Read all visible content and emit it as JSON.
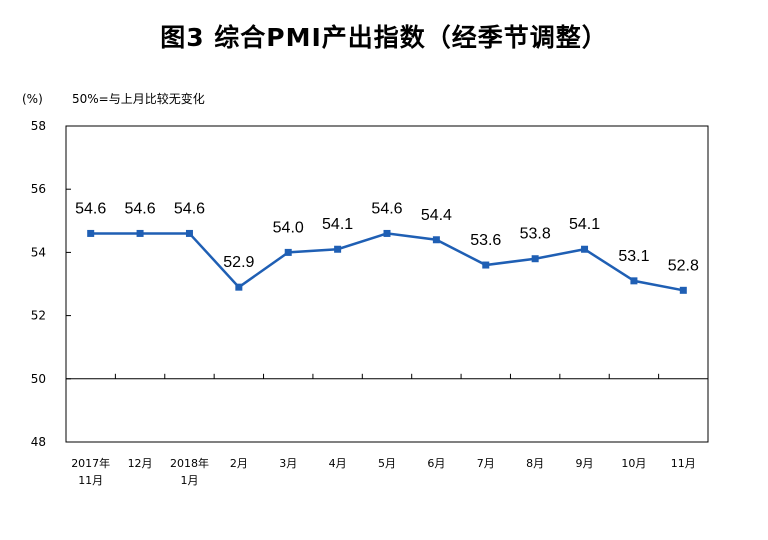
{
  "chart_data": {
    "type": "line",
    "title": "图3  综合PMI产出指数（经季节调整）",
    "unit_label": "(%)",
    "note": "50%=与上月比较无变化",
    "categories": [
      [
        "2017年",
        "11月"
      ],
      [
        "12月"
      ],
      [
        "2018年",
        "1月"
      ],
      [
        "2月"
      ],
      [
        "3月"
      ],
      [
        "4月"
      ],
      [
        "5月"
      ],
      [
        "6月"
      ],
      [
        "7月"
      ],
      [
        "8月"
      ],
      [
        "9月"
      ],
      [
        "10月"
      ],
      [
        "11月"
      ]
    ],
    "values": [
      54.6,
      54.6,
      54.6,
      52.9,
      54.0,
      54.1,
      54.6,
      54.4,
      53.6,
      53.8,
      54.1,
      53.1,
      52.8
    ],
    "data_labels": [
      "54.6",
      "54.6",
      "54.6",
      "52.9",
      "54.0",
      "54.1",
      "54.6",
      "54.4",
      "53.6",
      "53.8",
      "54.1",
      "53.1",
      "52.8"
    ],
    "ylim": [
      48,
      58
    ],
    "yticks": [
      "58",
      "56",
      "54",
      "52",
      "50",
      "48"
    ],
    "reference_value": 50,
    "grid": false,
    "legend": "none",
    "line_color": "#1f5fb4",
    "marker_color": "#1f5fb4"
  }
}
